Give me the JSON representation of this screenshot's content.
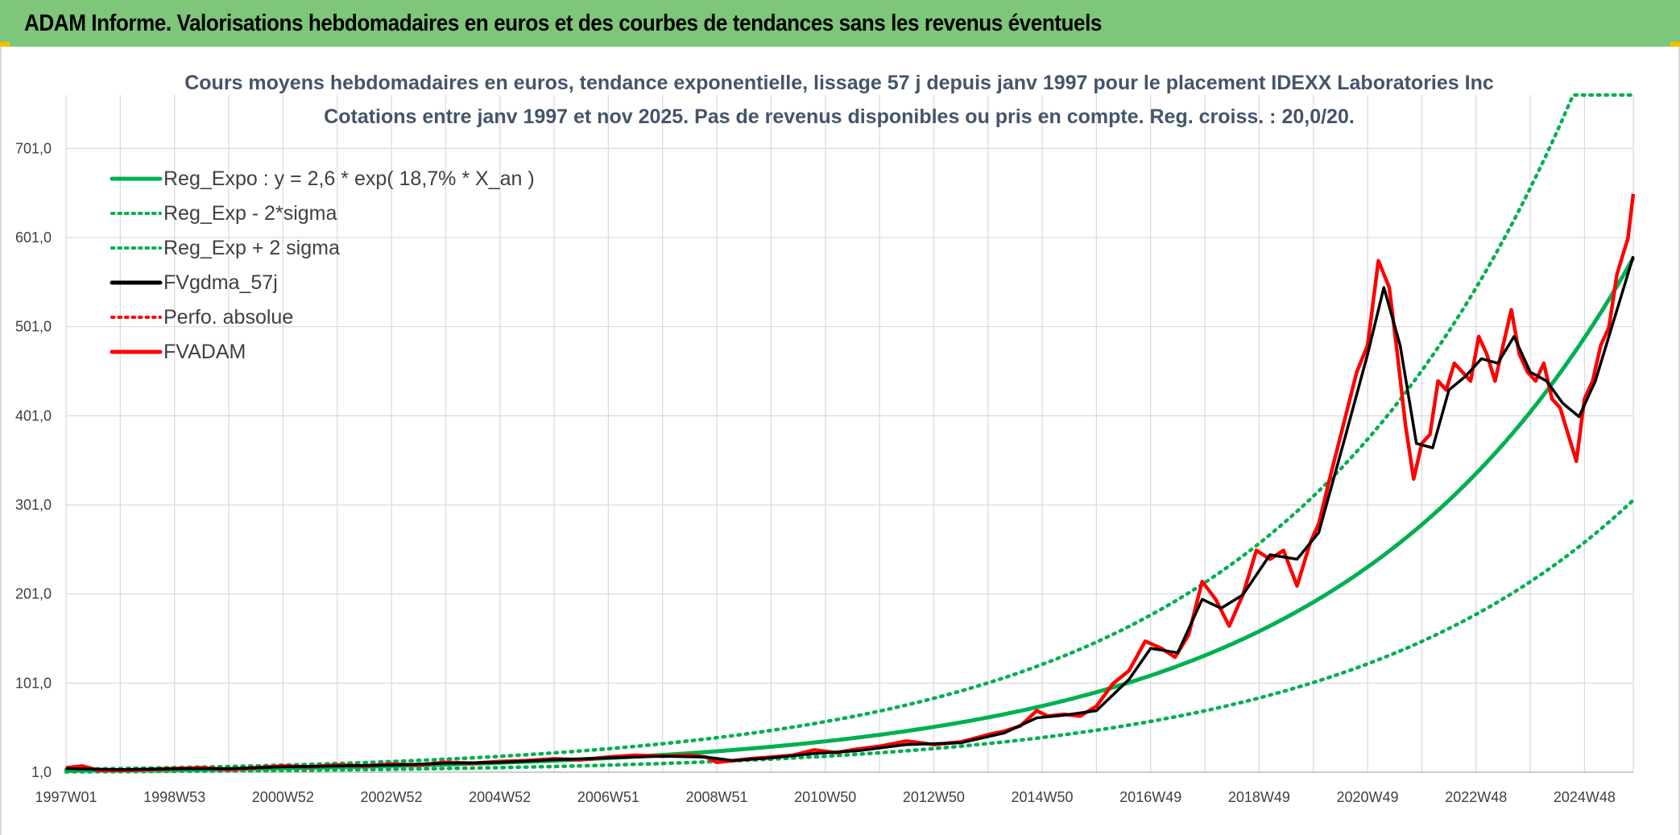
{
  "banner": {
    "title": "ADAM Informe. Valorisations hebdomadaires en euros et des courbes de tendances sans les revenus éventuels"
  },
  "colors": {
    "banner_bg": "#7dc67a",
    "reg_green": "#00b050",
    "red": "#ff0000",
    "black": "#000000",
    "grid": "#d9d9d9",
    "title_text": "#44546a"
  },
  "chart_data": {
    "type": "line",
    "title": "Cours moyens hebdomadaires en euros, tendance exponentielle, lissage 57 j depuis janv 1997 pour le placement IDEXX Laboratories Inc",
    "subtitle": "Cotations entre janv 1997 et nov 2025. Pas de revenus disponibles ou pris en compte. Reg. croiss. : 20,0/20.",
    "xlabel": "",
    "ylabel": "",
    "ylim": [
      1,
      761
    ],
    "xlim": [
      1997.0,
      2025.9
    ],
    "grid": true,
    "legend_position": "top-left",
    "y_ticks": [
      "1,0",
      "101,0",
      "201,0",
      "301,0",
      "401,0",
      "501,0",
      "601,0",
      "701,0"
    ],
    "y_tick_values": [
      1,
      101,
      201,
      301,
      401,
      501,
      601,
      701
    ],
    "x_ticks": [
      "1997W01",
      "1998W53",
      "2000W52",
      "2002W52",
      "2004W52",
      "2006W51",
      "2008W51",
      "2010W50",
      "2012W50",
      "2014W50",
      "2016W49",
      "2018W49",
      "2020W49",
      "2022W48",
      "2024W48"
    ],
    "x_tick_values": [
      1997.0,
      1999.0,
      2001.0,
      2003.0,
      2005.0,
      2007.0,
      2009.0,
      2011.0,
      2013.0,
      2015.0,
      2017.0,
      2019.0,
      2021.0,
      2023.0,
      2025.0
    ],
    "regression": {
      "label": "Reg_Expo : y = 2,6 * exp( 18,7% *  X_an )",
      "a": 2.6,
      "rate": 0.187,
      "start_year": 1997.0,
      "lower_factor": 0.53,
      "upper_factor": 1.62,
      "lower_label": "Reg_Exp - 2*sigma",
      "upper_label": "Reg_Exp + 2 sigma"
    },
    "series": [
      {
        "name": "FVADAM",
        "style": "solid-red-thick",
        "x": [
          1997.0,
          1997.3,
          1997.6,
          1998.0,
          1998.5,
          1999.0,
          1999.5,
          2000.0,
          2000.5,
          2001.0,
          2001.5,
          2002.0,
          2002.5,
          2003.0,
          2003.5,
          2004.0,
          2004.5,
          2005.0,
          2005.5,
          2006.0,
          2006.5,
          2007.0,
          2007.5,
          2008.0,
          2008.5,
          2008.8,
          2009.0,
          2009.3,
          2009.6,
          2010.0,
          2010.4,
          2010.8,
          2011.2,
          2011.6,
          2012.0,
          2012.5,
          2013.0,
          2013.5,
          2014.0,
          2014.3,
          2014.6,
          2014.9,
          2015.1,
          2015.4,
          2015.7,
          2016.0,
          2016.3,
          2016.6,
          2016.9,
          2017.2,
          2017.45,
          2017.7,
          2017.95,
          2018.2,
          2018.45,
          2018.7,
          2018.95,
          2019.2,
          2019.45,
          2019.7,
          2019.95,
          2020.1,
          2020.3,
          2020.55,
          2020.8,
          2021.0,
          2021.2,
          2021.4,
          2021.55,
          2021.7,
          2021.85,
          2022.0,
          2022.15,
          2022.3,
          2022.45,
          2022.6,
          2022.75,
          2022.9,
          2023.05,
          2023.2,
          2023.35,
          2023.5,
          2023.65,
          2023.8,
          2023.95,
          2024.1,
          2024.25,
          2024.4,
          2024.55,
          2024.7,
          2024.85,
          2025.0,
          2025.15,
          2025.3,
          2025.45,
          2025.6,
          2025.7,
          2025.8,
          2025.9
        ],
        "values": [
          6,
          8,
          3,
          3,
          4,
          5,
          6,
          4,
          6,
          8,
          7,
          9,
          8,
          10,
          9,
          12,
          11,
          13,
          14,
          16,
          15,
          18,
          20,
          19,
          20,
          18,
          12,
          14,
          16,
          18,
          20,
          26,
          23,
          27,
          30,
          36,
          32,
          35,
          43,
          47,
          53,
          70,
          64,
          66,
          64,
          75,
          100,
          115,
          148,
          140,
          130,
          155,
          215,
          195,
          165,
          200,
          250,
          240,
          250,
          210,
          260,
          280,
          330,
          390,
          450,
          480,
          575,
          545,
          470,
          390,
          330,
          370,
          380,
          440,
          430,
          460,
          450,
          440,
          490,
          470,
          440,
          480,
          520,
          470,
          450,
          440,
          460,
          420,
          410,
          380,
          350,
          420,
          440,
          480,
          500,
          560,
          580,
          600,
          650
        ]
      },
      {
        "name": "FVgdma_57j",
        "style": "solid-black",
        "x": [
          1997.0,
          1998.0,
          1999.0,
          2000.0,
          2001.0,
          2002.0,
          2003.0,
          2004.0,
          2005.0,
          2006.0,
          2007.0,
          2008.0,
          2008.8,
          2009.3,
          2010.0,
          2010.8,
          2011.6,
          2012.5,
          2013.5,
          2014.3,
          2014.9,
          2015.4,
          2016.0,
          2016.6,
          2017.0,
          2017.5,
          2017.95,
          2018.3,
          2018.7,
          2019.2,
          2019.7,
          2020.1,
          2020.6,
          2021.0,
          2021.3,
          2021.6,
          2021.9,
          2022.2,
          2022.5,
          2022.8,
          2023.1,
          2023.4,
          2023.7,
          2024.0,
          2024.3,
          2024.6,
          2024.9,
          2025.2,
          2025.5,
          2025.9
        ],
        "values": [
          5,
          4,
          5,
          5,
          7,
          8,
          9,
          11,
          12,
          15,
          17,
          19,
          18,
          14,
          17,
          22,
          25,
          32,
          34,
          45,
          62,
          65,
          70,
          105,
          140,
          135,
          195,
          185,
          200,
          245,
          240,
          270,
          380,
          470,
          545,
          480,
          370,
          365,
          430,
          445,
          465,
          460,
          490,
          450,
          440,
          415,
          400,
          440,
          500,
          580
        ]
      }
    ],
    "legend": [
      {
        "label": "Reg_Expo : y = 2,6 * exp( 18,7% *  X_an )",
        "style": "solid-green"
      },
      {
        "label": "Reg_Exp - 2*sigma",
        "style": "dotted-green"
      },
      {
        "label": "Reg_Exp + 2 sigma",
        "style": "dotted-green"
      },
      {
        "label": "FVgdma_57j",
        "style": "solid-black"
      },
      {
        "label": "Perfo. absolue",
        "style": "dotted-red"
      },
      {
        "label": "FVADAM",
        "style": "solid-red"
      }
    ]
  }
}
